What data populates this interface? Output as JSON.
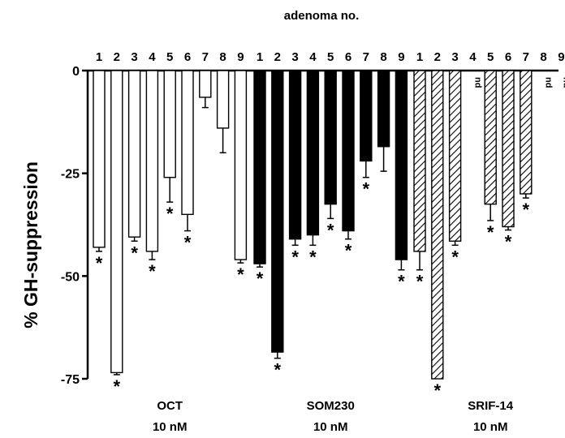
{
  "chart_data": {
    "type": "bar",
    "title": "adenoma no.",
    "ylabel": "% GH-suppression",
    "xlabel": "",
    "ylim": [
      -75,
      0
    ],
    "yticks": [
      0,
      -25,
      -50,
      -75
    ],
    "grid": false,
    "groups": [
      {
        "name": "OCT",
        "concentration": "10 nM",
        "fill": "white",
        "bars": [
          {
            "label": "1",
            "value": -43,
            "error": 1.0,
            "sig": true
          },
          {
            "label": "2",
            "value": -73.5,
            "error": 0.5,
            "sig": true
          },
          {
            "label": "3",
            "value": -40.5,
            "error": 1.0,
            "sig": true
          },
          {
            "label": "4",
            "value": -44,
            "error": 2.0,
            "sig": true
          },
          {
            "label": "5",
            "value": -26,
            "error": 6.0,
            "sig": true
          },
          {
            "label": "6",
            "value": -35,
            "error": 4.0,
            "sig": true
          },
          {
            "label": "7",
            "value": -6.5,
            "error": 2.5,
            "sig": false
          },
          {
            "label": "8",
            "value": -14,
            "error": 6.0,
            "sig": false
          },
          {
            "label": "9",
            "value": -46,
            "error": 0.8,
            "sig": true
          }
        ]
      },
      {
        "name": "SOM230",
        "concentration": "10 nM",
        "fill": "black",
        "bars": [
          {
            "label": "1",
            "value": -47,
            "error": 0.8,
            "sig": true
          },
          {
            "label": "2",
            "value": -68.5,
            "error": 1.5,
            "sig": true
          },
          {
            "label": "3",
            "value": -41,
            "error": 1.5,
            "sig": true
          },
          {
            "label": "4",
            "value": -40,
            "error": 2.5,
            "sig": true
          },
          {
            "label": "5",
            "value": -32.5,
            "error": 3.5,
            "sig": true
          },
          {
            "label": "6",
            "value": -39,
            "error": 2.0,
            "sig": true
          },
          {
            "label": "7",
            "value": -22,
            "error": 4.0,
            "sig": true
          },
          {
            "label": "8",
            "value": -18.5,
            "error": 6.0,
            "sig": false
          },
          {
            "label": "9",
            "value": -46,
            "error": 2.5,
            "sig": true
          }
        ]
      },
      {
        "name": "SRIF-14",
        "concentration": "10 nM",
        "fill": "hatched",
        "bars": [
          {
            "label": "1",
            "value": -44,
            "error": 4.5,
            "sig": true
          },
          {
            "label": "2",
            "value": -75,
            "error": 0,
            "sig": true
          },
          {
            "label": "3",
            "value": -41.5,
            "error": 1.0,
            "sig": true
          },
          {
            "label": "4",
            "value": null,
            "note": "nd"
          },
          {
            "label": "5",
            "value": -32.5,
            "error": 4.0,
            "sig": true
          },
          {
            "label": "6",
            "value": -38,
            "error": 0.8,
            "sig": true
          },
          {
            "label": "7",
            "value": -30,
            "error": 1.0,
            "sig": true
          },
          {
            "label": "8",
            "value": null,
            "note": "nd"
          },
          {
            "label": "9",
            "value": null,
            "note": "nd"
          }
        ]
      }
    ]
  },
  "annotations": {
    "significance_marker": "*"
  }
}
